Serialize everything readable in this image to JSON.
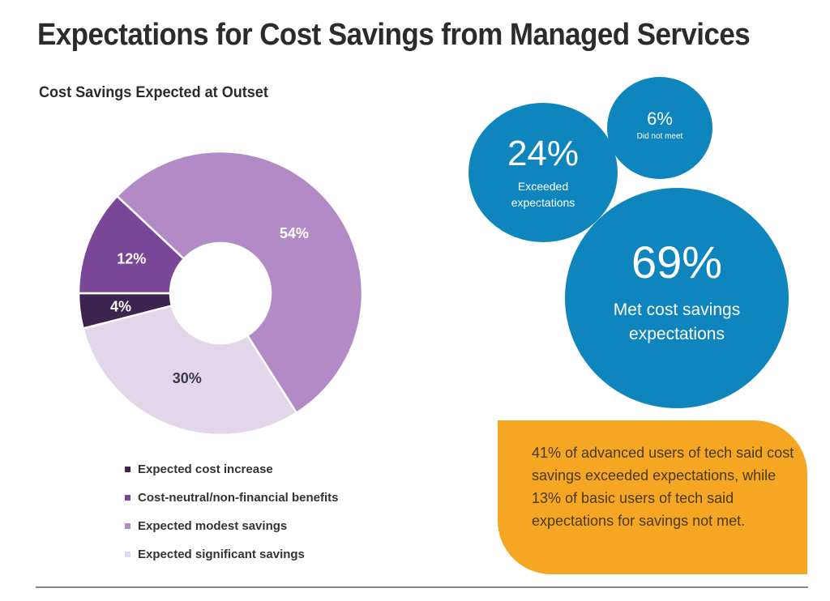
{
  "title": "Expectations for Cost Savings from Managed Services",
  "subtitle": "Cost Savings Expected at Outset",
  "chart_data": [
    {
      "type": "pie",
      "variant": "donut",
      "title": "Cost Savings Expected at Outset",
      "categories": [
        "Expected cost increase",
        "Cost-neutral/non-financial benefits",
        "Expected modest savings",
        "Expected significant savings"
      ],
      "values": [
        4,
        12,
        54,
        30
      ],
      "labels": [
        "4%",
        "12%",
        "54%",
        "30%"
      ],
      "colors": [
        "#3d2350",
        "#7a4698",
        "#b28ac6",
        "#e2d6ea"
      ],
      "label_colors": [
        "#ffffff",
        "#ffffff",
        "#ffffff",
        "#3a3a4a"
      ],
      "legend": "bottom"
    },
    {
      "type": "bubble",
      "title": "Cost savings outcomes",
      "categories": [
        "Exceeded expectations",
        "Did not meet",
        "Met cost savings expectations"
      ],
      "values": [
        24,
        6,
        69
      ],
      "color": "#0e86bd"
    }
  ],
  "bubbles": [
    {
      "pct": "24%",
      "label": "Exceeded expectations"
    },
    {
      "pct": "6%",
      "label": "Did not meet"
    },
    {
      "pct": "69%",
      "label": "Met cost savings expectations"
    }
  ],
  "callout": {
    "text": "41% of advanced users of tech said cost savings exceeded expectations, while 13% of basic users of tech said expectations for savings not met.",
    "color": "#f5a623"
  }
}
